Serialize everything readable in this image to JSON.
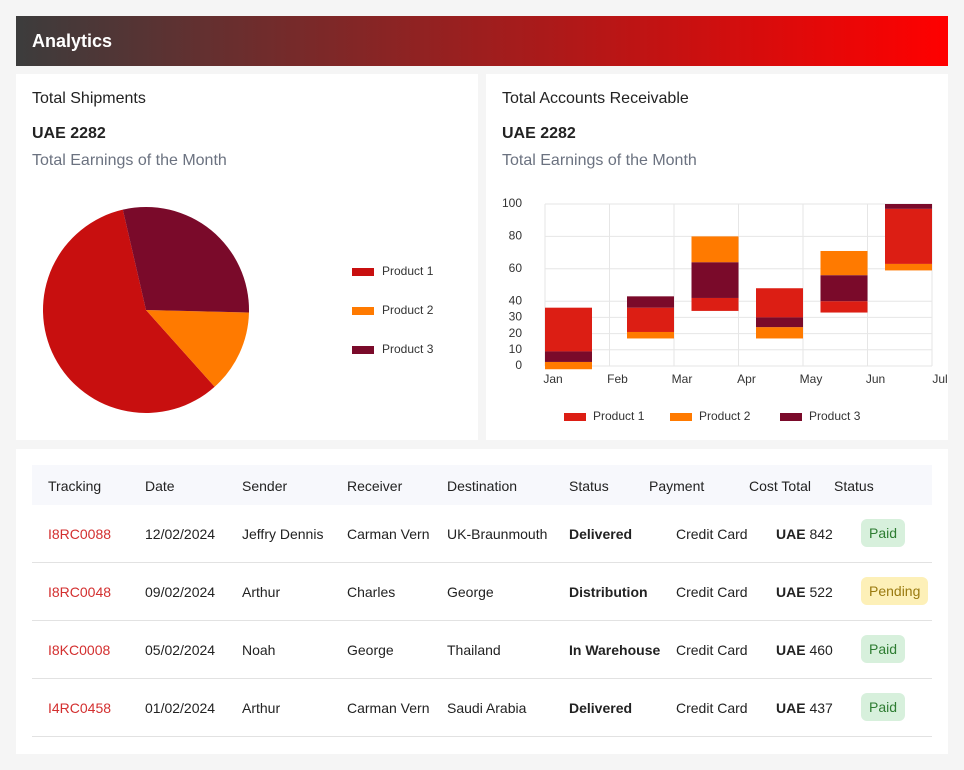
{
  "header": {
    "title": "Analytics"
  },
  "cards": [
    {
      "title": "Total Shipments",
      "value": "UAE 2282",
      "subtitle": "Total Earnings of the Month"
    },
    {
      "title": "Total Accounts Receivable",
      "value": "UAE 2282",
      "subtitle": "Total Earnings of the Month"
    }
  ],
  "chart_data": [
    {
      "type": "pie",
      "categories": [
        "Product 1",
        "Product 2",
        "Product 3"
      ],
      "values": [
        58,
        13,
        29
      ],
      "colors": [
        "#c80f0f",
        "#ff7a00",
        "#7a0a2a"
      ]
    },
    {
      "type": "floating-bar",
      "categories": [
        "Jan",
        "Feb",
        "Mar",
        "Apr",
        "May",
        "Jun",
        "Jul"
      ],
      "series": [
        {
          "name": "Product 1",
          "color": "#dc1e14",
          "values": [
            [
              9,
              36
            ],
            [
              21,
              36
            ],
            [
              34,
              42
            ],
            [
              30,
              48
            ],
            [
              33,
              40
            ],
            [
              63,
              97
            ],
            null
          ]
        },
        {
          "name": "Product 2",
          "color": "#ff7a00",
          "values": [
            [
              -2,
              2.5
            ],
            [
              17,
              21
            ],
            [
              64,
              80
            ],
            [
              17,
              24
            ],
            [
              56,
              71
            ],
            [
              59,
              63
            ],
            null
          ]
        },
        {
          "name": "Product 3",
          "color": "#7a0a2a",
          "values": [
            [
              2.5,
              9
            ],
            [
              36,
              43
            ],
            [
              42,
              64
            ],
            [
              24,
              30
            ],
            [
              40,
              56
            ],
            [
              97,
              100
            ],
            null
          ]
        }
      ],
      "ylim": [
        0,
        100
      ],
      "yticks": [
        0,
        10,
        20,
        30,
        40,
        60,
        80,
        100
      ],
      "grid": true
    }
  ],
  "table": {
    "columns": [
      "Tracking",
      "Date",
      "Sender",
      "Receiver",
      "Destination",
      "Status",
      "Payment",
      "Cost Total",
      "Status"
    ],
    "rows": [
      {
        "tracking": "I8RC0088",
        "date": "12/02/2024",
        "sender": "Jeffry Dennis",
        "receiver": "Carman Vern",
        "destination": "UK-Braunmouth",
        "status": "Delivered",
        "payment": "Credit Card",
        "currency": "UAE",
        "amount": "842",
        "payment_status": {
          "label": "Paid",
          "color": "#2e7d32",
          "background": "#d7f0dc"
        }
      },
      {
        "tracking": "I8RC0048",
        "date": "09/02/2024",
        "sender": "Arthur",
        "receiver": "Charles",
        "destination": "George",
        "status": "Distribution",
        "payment": "Credit Card",
        "currency": "UAE",
        "amount": "522",
        "payment_status": {
          "label": "Pending",
          "color": "#9a7a10",
          "background": "#fdf0b8"
        }
      },
      {
        "tracking": "I8KC0008",
        "date": "05/02/2024",
        "sender": "Noah",
        "receiver": "George",
        "destination": "Thailand",
        "status": "In Warehouse",
        "payment": "Credit Card",
        "currency": "UAE",
        "amount": "460",
        "payment_status": {
          "label": "Paid",
          "color": "#2e7d32",
          "background": "#d7f0dc"
        }
      },
      {
        "tracking": "I4RC0458",
        "date": "01/02/2024",
        "sender": "Arthur",
        "receiver": "Carman Vern",
        "destination": "Saudi Arabia",
        "status": "Delivered",
        "payment": "Credit Card",
        "currency": "UAE",
        "amount": "437",
        "payment_status": {
          "label": "Paid",
          "color": "#2e7d32",
          "background": "#d7f0dc"
        }
      }
    ]
  }
}
